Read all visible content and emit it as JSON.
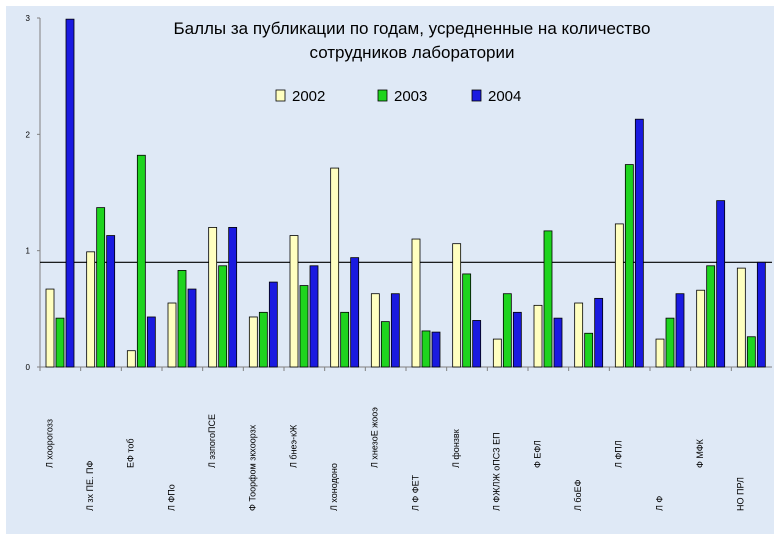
{
  "chart_data": {
    "type": "bar",
    "title_lines": [
      "Баллы за публикации по годам, усредненные на количество",
      "сотрудников лаборатории"
    ],
    "ylim": [
      0,
      3
    ],
    "yticks": [
      0,
      1,
      2,
      3
    ],
    "reference_line": 0.9,
    "legend_position": "top",
    "categories": [
      "Л хоорогозз",
      "Л зх ПЕ. ПФ",
      "ЕФ тоб",
      "Л ФПо",
      "Л эзпогоПСЕ",
      "Ф Тоорфом зкхоорзх",
      "Л бнеэ-кЖ",
      "Л хонодоно",
      "Л хнезоЕ жооэ",
      "Л Ф ФЕТ",
      "Л фонзвк",
      "Л ФЖЛЖ оПСЗ ЕП",
      "Ф ЕФЛ",
      "Л боЕФ",
      "Л ФПЛ",
      "Л Ф",
      "Ф МФК",
      "НО ПРЛ"
    ],
    "series": [
      {
        "name": "2002",
        "color": "#ffffc0",
        "values": [
          0.67,
          0.99,
          0.14,
          0.55,
          1.2,
          0.43,
          1.13,
          1.71,
          0.63,
          1.1,
          1.06,
          0.24,
          0.53,
          0.55,
          1.23,
          0.24,
          0.66,
          0.85
        ]
      },
      {
        "name": "2003",
        "color": "#1ed41e",
        "values": [
          0.42,
          1.37,
          1.82,
          0.83,
          0.87,
          0.47,
          0.7,
          0.47,
          0.39,
          0.31,
          0.8,
          0.63,
          1.17,
          0.29,
          1.74,
          0.42,
          0.87,
          0.26
        ]
      },
      {
        "name": "2004",
        "color": "#1a1ae0",
        "values": [
          2.99,
          1.13,
          0.43,
          0.67,
          1.2,
          0.73,
          0.87,
          0.94,
          0.63,
          0.3,
          0.4,
          0.47,
          0.42,
          0.59,
          2.13,
          0.63,
          1.43,
          0.9
        ]
      }
    ]
  }
}
